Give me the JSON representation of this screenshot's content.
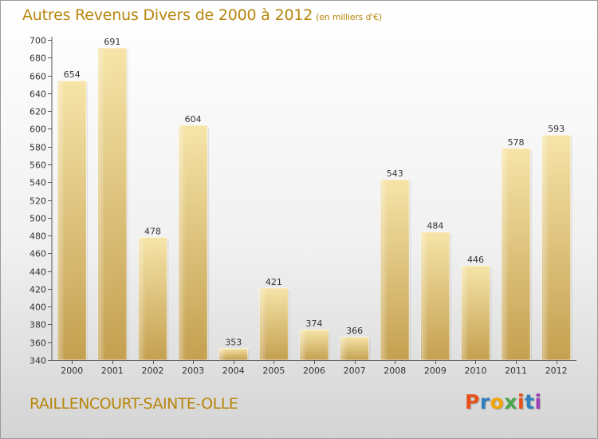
{
  "chart_data": {
    "type": "bar",
    "title": "Autres Revenus Divers de 2000 à 2012",
    "subtitle": "(en milliers d'€)",
    "categories": [
      "2000",
      "2001",
      "2002",
      "2003",
      "2004",
      "2005",
      "2006",
      "2007",
      "2008",
      "2009",
      "2010",
      "2011",
      "2012"
    ],
    "values": [
      654,
      691,
      478,
      604,
      353,
      421,
      374,
      366,
      543,
      484,
      446,
      578,
      593
    ],
    "data_labels": [
      "654",
      "691",
      "478",
      "604",
      "353",
      "421",
      "374",
      "366",
      "543",
      "484",
      "446",
      "578",
      "593"
    ],
    "ylim": [
      340,
      700
    ],
    "yticks": [
      "340",
      "360",
      "380",
      "400",
      "420",
      "440",
      "460",
      "480",
      "500",
      "520",
      "540",
      "560",
      "580",
      "600",
      "620",
      "640",
      "660",
      "680",
      "700"
    ],
    "grid": false,
    "xlabel": "",
    "ylabel": ""
  },
  "footer": {
    "place": "RAILLENCOURT-SAINTE-OLLE",
    "logo_text": "Proxiti",
    "logo_colors": [
      "#e8501a",
      "#2f7fc1",
      "#f0a500",
      "#4aa84a",
      "#e8501a",
      "#2f7fc1",
      "#9b3fb5"
    ]
  },
  "colors": {
    "title": "#b8860b",
    "bar_light": "#f6e4a8",
    "bar_dark": "#c9a654",
    "axis": "#555555"
  }
}
